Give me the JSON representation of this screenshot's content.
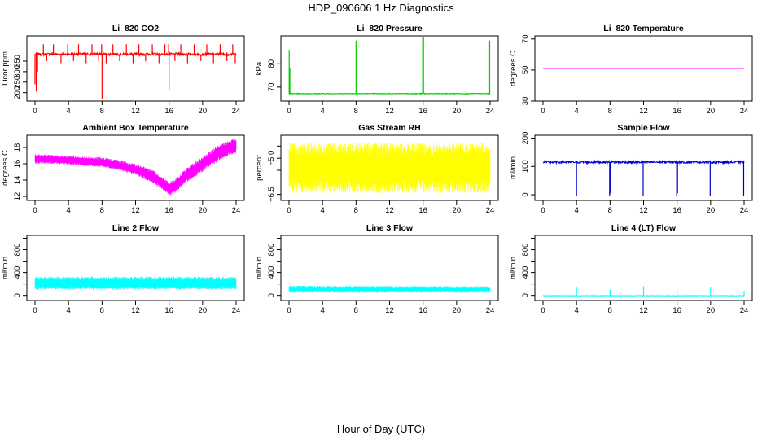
{
  "figure": {
    "title": "HDP_090606  1 Hz Diagnostics",
    "xlabel": "Hour of Day (UTC)"
  },
  "chart_data": [
    {
      "type": "line",
      "title": "Li–820 CO2",
      "ylabel": "Licor ppm",
      "color": "#ff0000",
      "xlim": [
        0,
        24
      ],
      "xticks": [
        0,
        4,
        8,
        12,
        16,
        20,
        24
      ],
      "ylim": [
        160,
        470
      ],
      "yticks": [
        200,
        250,
        300,
        350
      ],
      "baseline": 383,
      "noise": 6,
      "spikes": [
        [
          0.0,
          240
        ],
        [
          0.15,
          205
        ],
        [
          0.3,
          300
        ],
        [
          1.0,
          430
        ],
        [
          1.4,
          350
        ],
        [
          2.2,
          430
        ],
        [
          3.1,
          340
        ],
        [
          3.9,
          430
        ],
        [
          4.6,
          350
        ],
        [
          5.2,
          430
        ],
        [
          6.1,
          340
        ],
        [
          6.8,
          430
        ],
        [
          7.6,
          350
        ],
        [
          7.95,
          430
        ],
        [
          8.0,
          170
        ],
        [
          8.5,
          340
        ],
        [
          9.3,
          430
        ],
        [
          10.1,
          350
        ],
        [
          10.9,
          430
        ],
        [
          11.7,
          340
        ],
        [
          12.4,
          430
        ],
        [
          13.2,
          350
        ],
        [
          14.0,
          430
        ],
        [
          14.8,
          340
        ],
        [
          15.5,
          430
        ],
        [
          15.95,
          430
        ],
        [
          16.0,
          210
        ],
        [
          16.7,
          350
        ],
        [
          17.4,
          430
        ],
        [
          18.2,
          340
        ],
        [
          19.0,
          430
        ],
        [
          19.8,
          350
        ],
        [
          20.5,
          430
        ],
        [
          21.3,
          340
        ],
        [
          22.1,
          430
        ],
        [
          22.9,
          350
        ],
        [
          23.6,
          430
        ],
        [
          23.9,
          340
        ]
      ],
      "series": [
        {
          "values_summary": "approximately 383 ppm with frequent spikes up to about 430 and dips to about 170"
        }
      ]
    },
    {
      "type": "line",
      "title": "Li–820 Pressure",
      "ylabel": "kPa",
      "color": "#00cc00",
      "xlim": [
        0,
        24
      ],
      "xticks": [
        0,
        4,
        8,
        12,
        16,
        20,
        24
      ],
      "ylim": [
        64,
        92
      ],
      "yticks": [
        70,
        80
      ],
      "baseline": 67.2,
      "noise": 0.15,
      "spikes": [
        [
          0.02,
          86
        ],
        [
          0.1,
          78
        ],
        [
          8.0,
          90
        ],
        [
          15.95,
          92
        ],
        [
          16.05,
          92
        ],
        [
          23.95,
          90
        ]
      ],
      "series": [
        {
          "values_summary": "approximately 67 kPa with spikes to about 90 kPa at hours 0, 8, 16 and 24"
        }
      ]
    },
    {
      "type": "line",
      "title": "Li–820 Temperature",
      "ylabel": "degrees C",
      "color": "#ff00ff",
      "xlim": [
        0,
        24
      ],
      "xticks": [
        0,
        4,
        8,
        12,
        16,
        20,
        24
      ],
      "ylim": [
        30,
        72
      ],
      "yticks": [
        30,
        50,
        70
      ],
      "baseline": 51,
      "noise": 0,
      "spikes": [],
      "series": [
        {
          "values_summary": "constant at about 51 degrees C"
        }
      ]
    },
    {
      "type": "area",
      "title": "Ambient Box Temperature",
      "ylabel": "degrees C",
      "color": "#ff00ff",
      "xlim": [
        0,
        24
      ],
      "xticks": [
        0,
        4,
        8,
        12,
        16,
        20,
        24
      ],
      "ylim": [
        11.5,
        19.5
      ],
      "yticks": [
        12,
        14,
        16,
        18
      ],
      "envelope": [
        [
          0,
          16.0,
          17.2
        ],
        [
          2,
          16.0,
          17.1
        ],
        [
          4,
          15.9,
          17.0
        ],
        [
          6,
          15.7,
          16.9
        ],
        [
          8,
          15.6,
          16.8
        ],
        [
          10,
          15.2,
          16.5
        ],
        [
          12,
          14.6,
          16.0
        ],
        [
          14,
          13.6,
          15.3
        ],
        [
          15,
          13.0,
          14.5
        ],
        [
          16,
          12.1,
          13.8
        ],
        [
          16.5,
          12.2,
          14.0
        ],
        [
          17,
          12.7,
          14.5
        ],
        [
          18,
          13.6,
          15.4
        ],
        [
          20,
          15.0,
          16.9
        ],
        [
          22,
          16.4,
          18.4
        ],
        [
          23,
          17.0,
          18.8
        ],
        [
          24,
          17.3,
          19.2
        ]
      ],
      "series": [
        {
          "values_summary": "about 16.5 C decreasing to about 13 C near hour 16, rising to about 18 C by hour 24"
        }
      ]
    },
    {
      "type": "area",
      "title": "Gas Stream RH",
      "ylabel": "percent",
      "color": "#ffff00",
      "xlim": [
        0,
        24
      ],
      "xticks": [
        0,
        4,
        8,
        12,
        16,
        20,
        24
      ],
      "ylim": [
        -6.75,
        -4.05
      ],
      "yticks": [
        -6.5,
        -5.5,
        -5.0,
        -4.5
      ],
      "ytick_labels": [
        "−6.5",
        "",
        "−5.0",
        ""
      ],
      "envelope": [
        [
          0,
          -6.45,
          -4.35
        ],
        [
          24,
          -6.45,
          -4.35
        ]
      ],
      "series": [
        {
          "values_summary": "noisy band between about -6.5 and -4.3 percent"
        }
      ]
    },
    {
      "type": "line",
      "title": "Sample Flow",
      "ylabel": "ml/min",
      "color": "#0000cc",
      "xlim": [
        0,
        24
      ],
      "xticks": [
        0,
        4,
        8,
        12,
        16,
        20,
        24
      ],
      "ylim": [
        -20,
        210
      ],
      "yticks": [
        0,
        100,
        200
      ],
      "baseline": 115,
      "noise": 4,
      "spikes": [
        [
          4.0,
          -5
        ],
        [
          7.95,
          -5
        ],
        [
          8.05,
          5
        ],
        [
          11.95,
          -5
        ],
        [
          15.95,
          -5
        ],
        [
          16.05,
          5
        ],
        [
          19.95,
          -5
        ],
        [
          23.95,
          -5
        ]
      ],
      "series": [
        {
          "values_summary": "about 115 ml/min with dips near 0 at hours 4, 8, 12, 16, 20 and 24"
        }
      ]
    },
    {
      "type": "area",
      "title": "Line 2 Flow",
      "ylabel": "ml/min",
      "color": "#00ffff",
      "xlim": [
        0,
        24
      ],
      "xticks": [
        0,
        4,
        8,
        12,
        16,
        20,
        24
      ],
      "ylim": [
        -90,
        1050
      ],
      "yticks": [
        0,
        200,
        400,
        600,
        800,
        1000
      ],
      "ytick_labels": [
        "0",
        "",
        "400",
        "",
        "800",
        ""
      ],
      "envelope": [
        [
          0,
          100,
          330
        ],
        [
          24,
          100,
          330
        ]
      ],
      "series": [
        {
          "values_summary": "band between about 100 and 330 ml/min"
        }
      ]
    },
    {
      "type": "area",
      "title": "Line 3 Flow",
      "ylabel": "ml/min",
      "color": "#00ffff",
      "xlim": [
        0,
        24
      ],
      "xticks": [
        0,
        4,
        8,
        12,
        16,
        20,
        24
      ],
      "ylim": [
        -90,
        1050
      ],
      "yticks": [
        0,
        200,
        400,
        600,
        800,
        1000
      ],
      "ytick_labels": [
        "0",
        "",
        "400",
        "",
        "800",
        ""
      ],
      "envelope": [
        [
          0,
          60,
          170
        ],
        [
          24,
          60,
          160
        ]
      ],
      "series": [
        {
          "values_summary": "band between about 60 and 170 ml/min"
        }
      ]
    },
    {
      "type": "line",
      "title": "Line 4 (LT) Flow",
      "ylabel": "ml/min",
      "color": "#00ffff",
      "xlim": [
        0,
        24
      ],
      "xticks": [
        0,
        4,
        8,
        12,
        16,
        20,
        24
      ],
      "ylim": [
        -90,
        1050
      ],
      "yticks": [
        0,
        200,
        400,
        600,
        800,
        1000
      ],
      "ytick_labels": [
        "0",
        "",
        "400",
        "",
        "800",
        ""
      ],
      "baseline": -5,
      "noise": 4,
      "spikes": [
        [
          4.0,
          150
        ],
        [
          8.0,
          100
        ],
        [
          12.0,
          160
        ],
        [
          16.0,
          100
        ],
        [
          20.0,
          150
        ],
        [
          24.0,
          80
        ]
      ],
      "series": [
        {
          "values_summary": "about 0 ml/min with small spikes to about 150 at hours 4, 8, 12, 16, 20 and 24"
        }
      ]
    }
  ]
}
